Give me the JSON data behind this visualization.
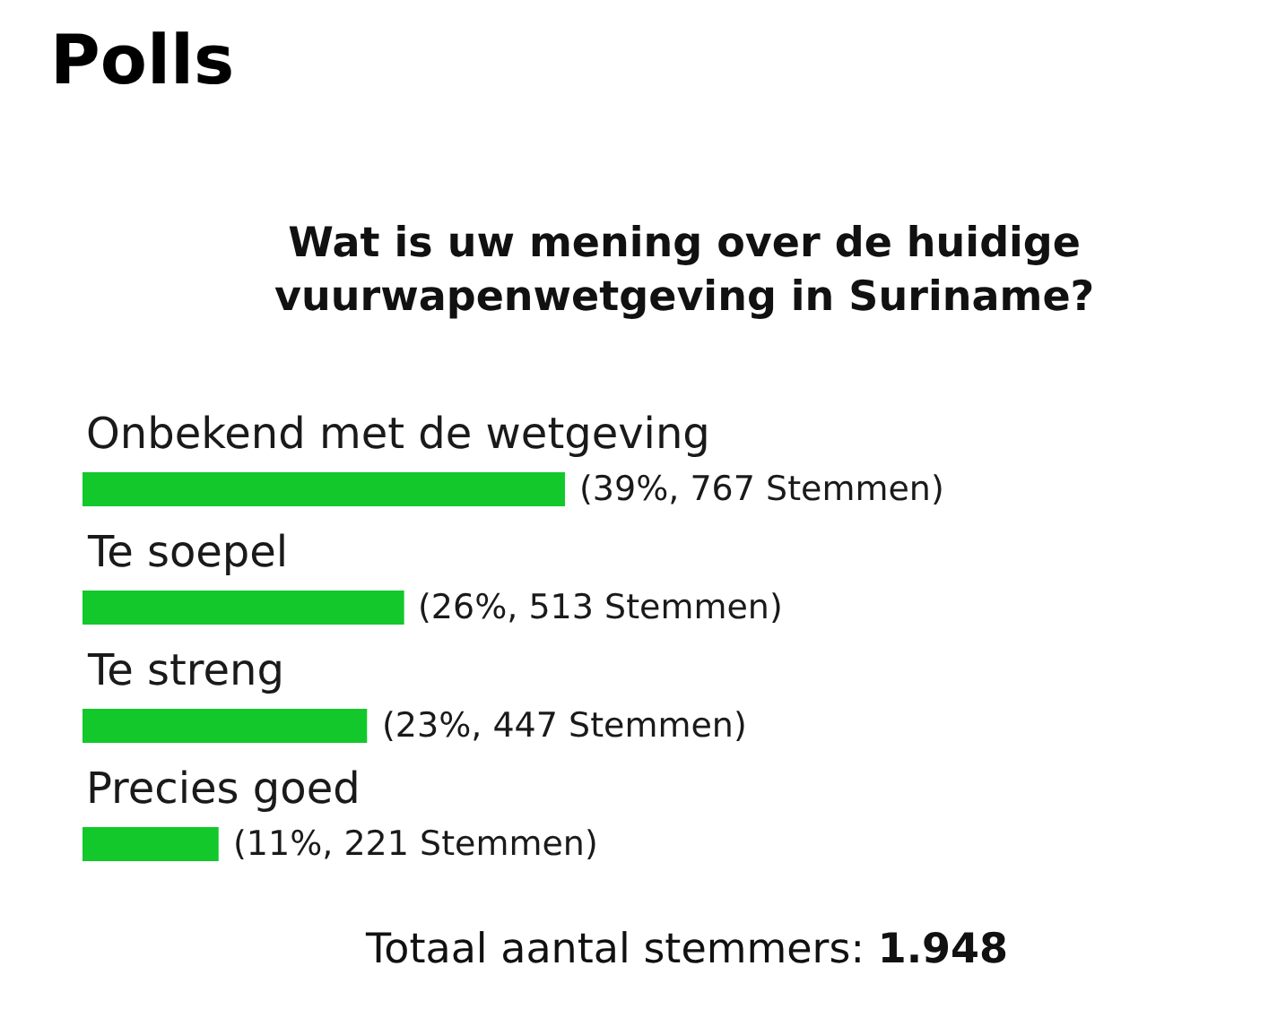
{
  "chart_data": {
    "type": "bar",
    "orientation": "horizontal",
    "title": "Polls",
    "subtitle": "Wat is uw mening over de huidige vuurwapenwetgeving in Suriname?",
    "categories": [
      "Onbekend met de wetgeving",
      "Te soepel",
      "Te streng",
      "Precies goed"
    ],
    "values": [
      39,
      26,
      23,
      11
    ],
    "value_labels": [
      "(39%, 767 Stemmen)",
      "(26%, 513 Stemmen)",
      "(23%, 447 Stemmen)",
      "(11%, 221 Stemmen)"
    ],
    "color": "#13c82b",
    "tick_labels": "y",
    "annotations": [
      "Totaal aantal stemmers: 1.948"
    ]
  }
}
